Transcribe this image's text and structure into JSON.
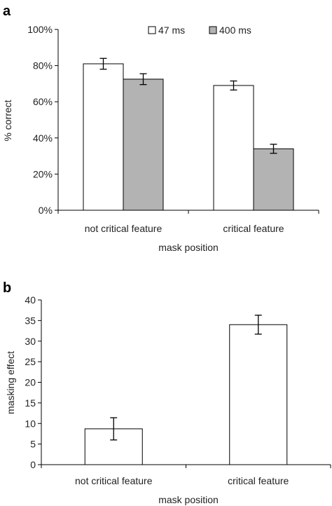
{
  "chart_data": [
    {
      "panel_label": "a",
      "type": "bar",
      "categories": [
        "not critical feature",
        "critical feature"
      ],
      "series": [
        {
          "name": "47 ms",
          "values": [
            81,
            69
          ],
          "errors": [
            3,
            2.5
          ],
          "color": "#ffffff"
        },
        {
          "name": "400 ms",
          "values": [
            72.5,
            34
          ],
          "errors": [
            3,
            2.5
          ],
          "color": "#b3b3b3"
        }
      ],
      "xlabel": "mask position",
      "ylabel": "% correct",
      "ylim": [
        0,
        100
      ],
      "yticks": [
        0,
        20,
        40,
        60,
        80,
        100
      ],
      "ytick_labels": [
        "0%",
        "20%",
        "40%",
        "60%",
        "80%",
        "100%"
      ],
      "legend_position": "top-right",
      "grid": false
    },
    {
      "panel_label": "b",
      "type": "bar",
      "categories": [
        "not critical feature",
        "critical feature"
      ],
      "series": [
        {
          "values": [
            8.7,
            34
          ],
          "errors": [
            2.7,
            2.3
          ],
          "color": "#ffffff"
        }
      ],
      "xlabel": "mask position",
      "ylabel": "masking effect",
      "ylim": [
        0,
        40
      ],
      "yticks": [
        0,
        5,
        10,
        15,
        20,
        25,
        30,
        35,
        40
      ],
      "ytick_labels": [
        "0",
        "5",
        "10",
        "15",
        "20",
        "25",
        "30",
        "35",
        "40"
      ],
      "grid": false
    }
  ]
}
